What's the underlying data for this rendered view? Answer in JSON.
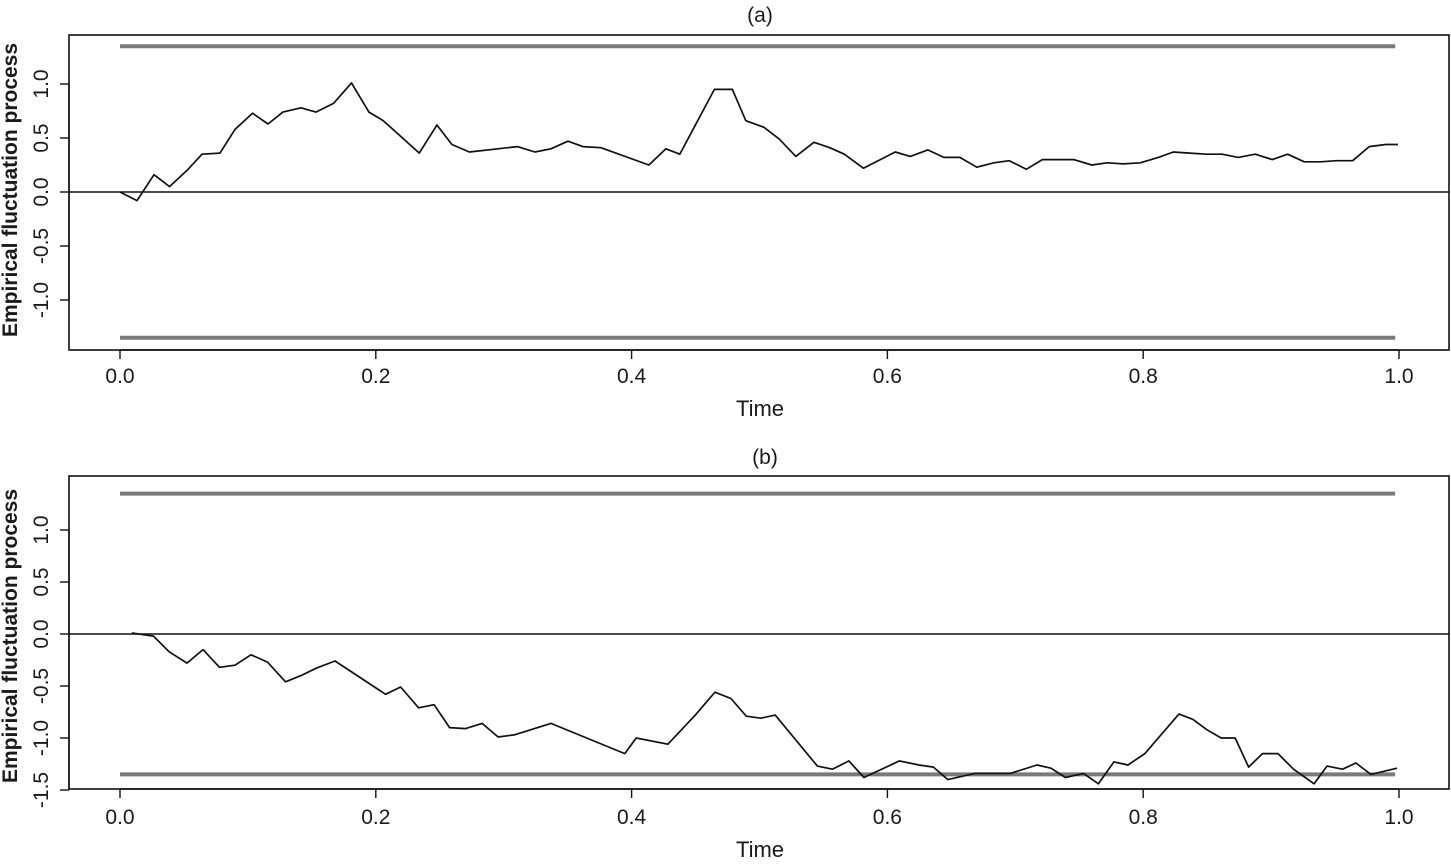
{
  "colors": {
    "series": "#111111",
    "boundary": "#7a7a7a",
    "zero": "#111111"
  },
  "chart_data": [
    {
      "type": "line",
      "title": "(a)",
      "xlabel": "Time",
      "ylabel": "Empirical fluctuation process",
      "xlim": [
        0,
        1
      ],
      "ylim": [
        -1.45,
        1.45
      ],
      "xticks": [
        0.0,
        0.2,
        0.4,
        0.6,
        0.8,
        1.0
      ],
      "xtick_labels": [
        "0.0",
        "0.2",
        "0.4",
        "0.6",
        "0.8",
        "1.0"
      ],
      "yticks": [
        -1.0,
        -0.5,
        0.0,
        0.5,
        1.0
      ],
      "ytick_labels": [
        "-1.0",
        "-0.5",
        "0.0",
        "0.5",
        "1.0"
      ],
      "grid": false,
      "boundaries": [
        1.35,
        -1.35
      ],
      "reference_line": 0,
      "series": [
        {
          "x": [
            0.0,
            0.0133,
            0.0266,
            0.0387,
            0.0524,
            0.0641,
            0.0782,
            0.0899,
            0.1036,
            0.1157,
            0.1274,
            0.1415,
            0.1532,
            0.1669,
            0.181,
            0.1946,
            0.2059,
            0.234,
            0.2478,
            0.2595,
            0.2732,
            0.3107,
            0.3244,
            0.3369,
            0.3502,
            0.3619,
            0.376,
            0.4135,
            0.4268,
            0.4377,
            0.4647,
            0.4788,
            0.4893,
            0.5034,
            0.5155,
            0.5284,
            0.5425,
            0.555,
            0.5663,
            0.5812,
            0.6062,
            0.6179,
            0.6316,
            0.6441,
            0.6566,
            0.6699,
            0.6832,
            0.6953,
            0.7086,
            0.7211,
            0.7344,
            0.7457,
            0.7598,
            0.7719,
            0.7844,
            0.7977,
            0.8118,
            0.8235,
            0.8364,
            0.8493,
            0.8618,
            0.8743,
            0.8876,
            0.9009,
            0.913,
            0.9259,
            0.9388,
            0.9509,
            0.9638,
            0.9767,
            0.9896,
            0.9992
          ],
          "values": [
            0.0,
            -0.08,
            0.16,
            0.05,
            0.2,
            0.35,
            0.36,
            0.58,
            0.73,
            0.63,
            0.74,
            0.78,
            0.74,
            0.82,
            1.01,
            0.74,
            0.66,
            0.36,
            0.62,
            0.44,
            0.37,
            0.42,
            0.37,
            0.4,
            0.47,
            0.42,
            0.41,
            0.25,
            0.4,
            0.35,
            0.95,
            0.95,
            0.66,
            0.6,
            0.49,
            0.33,
            0.46,
            0.41,
            0.35,
            0.22,
            0.37,
            0.33,
            0.39,
            0.32,
            0.32,
            0.23,
            0.27,
            0.29,
            0.21,
            0.3,
            0.3,
            0.3,
            0.25,
            0.27,
            0.26,
            0.27,
            0.32,
            0.37,
            0.36,
            0.35,
            0.35,
            0.32,
            0.35,
            0.3,
            0.35,
            0.28,
            0.28,
            0.29,
            0.29,
            0.42,
            0.44,
            0.44
          ]
        }
      ]
    },
    {
      "type": "line",
      "title": "(b)",
      "xlabel": "Time",
      "ylabel": "Empirical fluctuation process",
      "xlim": [
        0,
        1
      ],
      "ylim": [
        -1.5,
        1.45
      ],
      "xticks": [
        0.0,
        0.2,
        0.4,
        0.6,
        0.8,
        1.0
      ],
      "xtick_labels": [
        "0.0",
        "0.2",
        "0.4",
        "0.6",
        "0.8",
        "1.0"
      ],
      "yticks": [
        -1.5,
        -1.0,
        -0.5,
        0.0,
        0.5,
        1.0
      ],
      "ytick_labels": [
        "-1.5",
        "-1.0",
        "-0.5",
        "0.0",
        "0.5",
        "1.0"
      ],
      "grid": false,
      "boundaries": [
        1.35,
        -1.35
      ],
      "reference_line": 0,
      "series": [
        {
          "x": [
            0.0092,
            0.0262,
            0.0383,
            0.0524,
            0.0649,
            0.0778,
            0.0899,
            0.1024,
            0.1153,
            0.1294,
            0.1415,
            0.1532,
            0.1681,
            0.2077,
            0.2194,
            0.2335,
            0.2456,
            0.2577,
            0.2702,
            0.2831,
            0.2956,
            0.3081,
            0.3369,
            0.3947,
            0.4036,
            0.4284,
            0.4498,
            0.4651,
            0.4776,
            0.4897,
            0.501,
            0.5123,
            0.5453,
            0.557,
            0.5699,
            0.5816,
            0.6094,
            0.6247,
            0.636,
            0.6473,
            0.6682,
            0.6961,
            0.717,
            0.7279,
            0.7392,
            0.7533,
            0.765,
            0.7771,
            0.788,
            0.8013,
            0.8279,
            0.8388,
            0.8497,
            0.861,
            0.8719,
            0.8824,
            0.8933,
            0.9054,
            0.9175,
            0.9336,
            0.9437,
            0.9558,
            0.9663,
            0.978,
            0.9984
          ],
          "values": [
            0.01,
            -0.02,
            -0.17,
            -0.28,
            -0.15,
            -0.32,
            -0.3,
            -0.2,
            -0.27,
            -0.46,
            -0.4,
            -0.33,
            -0.26,
            -0.58,
            -0.51,
            -0.71,
            -0.68,
            -0.9,
            -0.91,
            -0.86,
            -0.99,
            -0.97,
            -0.86,
            -1.15,
            -1.0,
            -1.06,
            -0.78,
            -0.56,
            -0.62,
            -0.79,
            -0.81,
            -0.78,
            -1.27,
            -1.3,
            -1.22,
            -1.38,
            -1.22,
            -1.26,
            -1.28,
            -1.4,
            -1.34,
            -1.34,
            -1.26,
            -1.29,
            -1.38,
            -1.34,
            -1.44,
            -1.23,
            -1.26,
            -1.15,
            -0.77,
            -0.82,
            -0.92,
            -1.0,
            -1.0,
            -1.28,
            -1.15,
            -1.15,
            -1.3,
            -1.44,
            -1.27,
            -1.3,
            -1.24,
            -1.35,
            -1.29
          ]
        }
      ]
    }
  ]
}
